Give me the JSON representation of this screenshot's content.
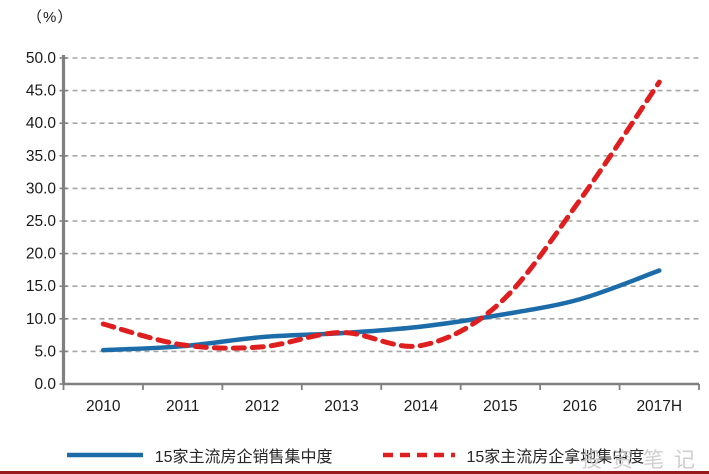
{
  "unit_label": "（%）",
  "watermark_text": "投资笔记",
  "colors": {
    "axis": "#808080",
    "gridline": "#a6a6a6",
    "tick_text": "#1a1a1a",
    "series_sales": "#1c6ca9",
    "series_land": "#df1f1f",
    "bottom_strip": "#97191b"
  },
  "chart_data": {
    "type": "line",
    "title": "",
    "xlabel": "",
    "ylabel": "（%）",
    "categories": [
      "2010",
      "2011",
      "2012",
      "2013",
      "2014",
      "2015",
      "2016",
      "2017H"
    ],
    "series": [
      {
        "name": "15家主流房企销售集中度",
        "style": "solid",
        "color": "#1c6ca9",
        "values": [
          5.2,
          5.8,
          7.2,
          7.8,
          8.8,
          10.6,
          13.0,
          17.4
        ]
      },
      {
        "name": "15家主流房企拿地集中度",
        "style": "dashed",
        "color": "#df1f1f",
        "values": [
          9.2,
          6.0,
          5.7,
          7.9,
          5.9,
          12.5,
          28.2,
          46.3
        ]
      }
    ],
    "ylim": [
      0,
      50
    ],
    "ytick_step": 5,
    "ytick_decimals": 1,
    "grid": "horizontal-dashed",
    "legend_position": "bottom",
    "line_smoothing": true
  }
}
